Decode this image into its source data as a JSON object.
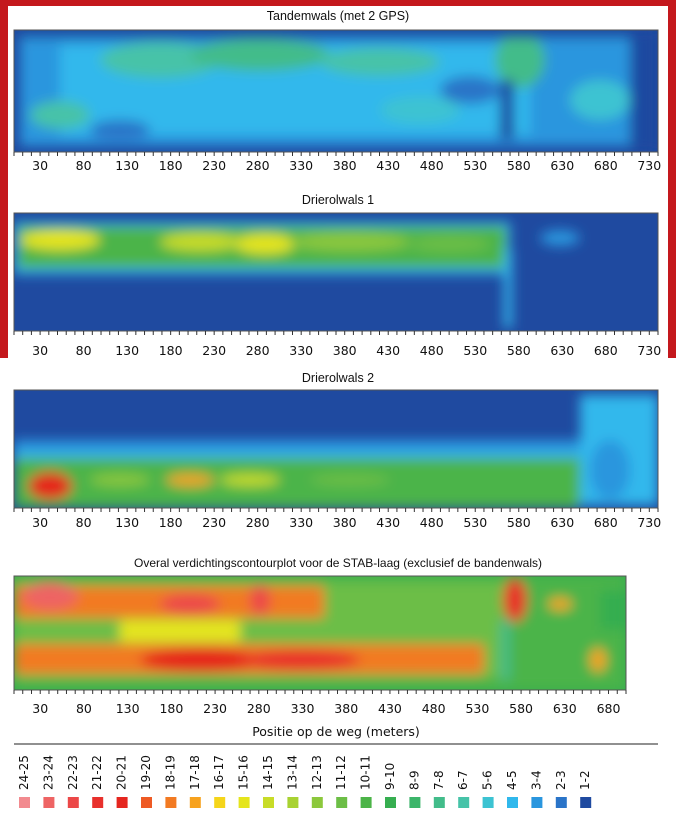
{
  "chart_data": [
    {
      "type": "heatmap",
      "title": "Tandemwals (met 2 GPS)",
      "x_ticks": [
        30,
        80,
        130,
        180,
        230,
        280,
        330,
        380,
        430,
        480,
        530,
        580,
        630,
        680,
        730
      ],
      "xlim": [
        0,
        740
      ],
      "dominant_classes": [
        "1-2",
        "2-3",
        "3-4",
        "4-5",
        "5-6",
        "6-7"
      ]
    },
    {
      "type": "heatmap",
      "title": "Drierolwals 1",
      "x_ticks": [
        30,
        80,
        130,
        180,
        230,
        280,
        330,
        380,
        430,
        480,
        530,
        580,
        630,
        680,
        730
      ],
      "xlim": [
        0,
        740
      ],
      "dominant_classes": [
        "1-2",
        "3-4",
        "7-8",
        "10-11",
        "15-16"
      ]
    },
    {
      "type": "heatmap",
      "title": "Drierolwals 2",
      "x_ticks": [
        30,
        80,
        130,
        180,
        230,
        280,
        330,
        380,
        430,
        480,
        530,
        580,
        630,
        680,
        730
      ],
      "xlim": [
        0,
        740
      ],
      "dominant_classes": [
        "1-2",
        "3-4",
        "9-10",
        "14-15",
        "21-22"
      ]
    },
    {
      "type": "heatmap",
      "title": "Overal verdichtingscontourplot voor de STAB-laag (exclusief de bandenwals)",
      "xlabel": "Positie op de weg (meters)",
      "x_ticks": [
        30,
        80,
        130,
        180,
        230,
        280,
        330,
        380,
        430,
        480,
        530,
        580,
        630,
        680
      ],
      "xlim": [
        0,
        700
      ],
      "dominant_classes": [
        "5-6",
        "10-11",
        "14-15",
        "19-20",
        "23-24"
      ]
    }
  ],
  "legend": {
    "items": [
      {
        "label": "24-25",
        "color": "#f28a8f"
      },
      {
        "label": "23-24",
        "color": "#ee6464"
      },
      {
        "label": "22-23",
        "color": "#ec4848"
      },
      {
        "label": "21-22",
        "color": "#e8302c"
      },
      {
        "label": "20-21",
        "color": "#e5261f"
      },
      {
        "label": "19-20",
        "color": "#ee5a24"
      },
      {
        "label": "18-19",
        "color": "#f27a22"
      },
      {
        "label": "17-18",
        "color": "#f7a21e"
      },
      {
        "label": "16-17",
        "color": "#f5d51a"
      },
      {
        "label": "15-16",
        "color": "#e5e51c"
      },
      {
        "label": "14-15",
        "color": "#c8dc28"
      },
      {
        "label": "13-14",
        "color": "#a8d232"
      },
      {
        "label": "12-13",
        "color": "#8cc83c"
      },
      {
        "label": "11-12",
        "color": "#6cbe46"
      },
      {
        "label": "10-11",
        "color": "#4cb448"
      },
      {
        "label": "9-10",
        "color": "#36ae50"
      },
      {
        "label": "8-9",
        "color": "#3cb56a"
      },
      {
        "label": "7-8",
        "color": "#42bc8a"
      },
      {
        "label": "6-7",
        "color": "#46c3a8"
      },
      {
        "label": "5-6",
        "color": "#3cc3d2"
      },
      {
        "label": "4-5",
        "color": "#30b8ec"
      },
      {
        "label": "3-4",
        "color": "#2a96de"
      },
      {
        "label": "2-3",
        "color": "#2a74c8"
      },
      {
        "label": "1-2",
        "color": "#1f4aa0"
      }
    ]
  }
}
